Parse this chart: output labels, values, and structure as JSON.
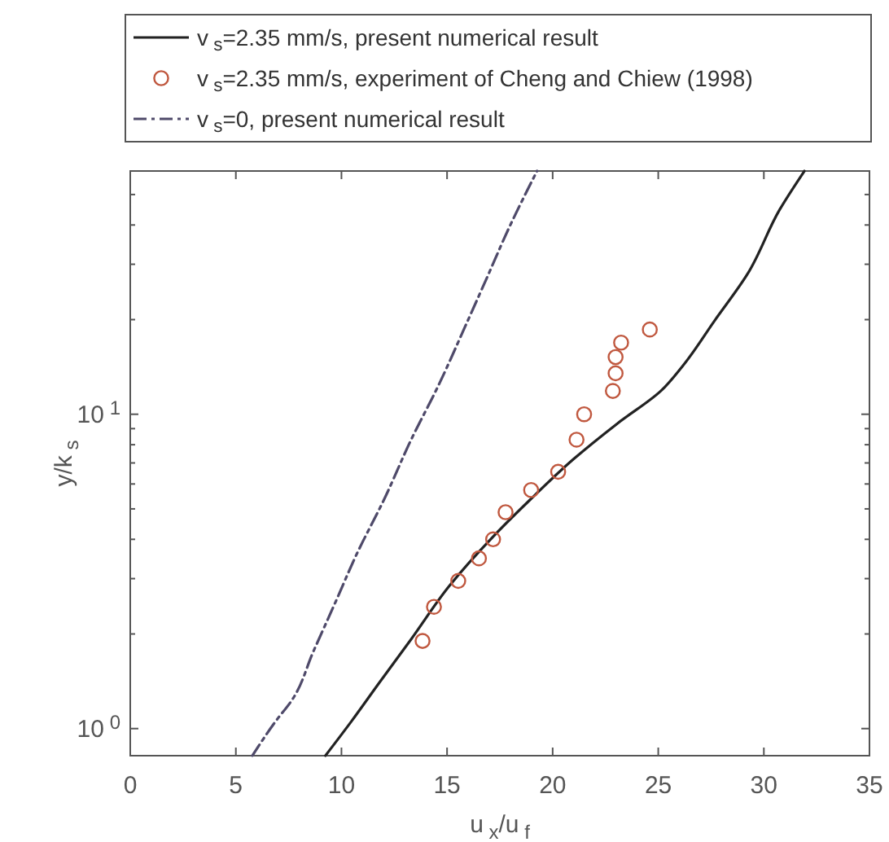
{
  "chart_data": {
    "type": "line",
    "xlabel": "u$_{x}$/u$_{f}$",
    "ylabel": "y/k$_{s}$",
    "log": "y",
    "grid": false,
    "legend": "top",
    "xlim": [
      0,
      35
    ],
    "xticks": [
      0,
      5,
      10,
      15,
      20,
      25,
      30,
      35
    ],
    "ylim": [
      0.82,
      59.4
    ],
    "yticks": [
      {
        "value": 1,
        "label": "10$^{0}$"
      },
      {
        "value": 2,
        "label": null
      },
      {
        "value": 3,
        "label": null
      },
      {
        "value": 4,
        "label": null
      },
      {
        "value": 5,
        "label": null
      },
      {
        "value": 6,
        "label": null
      },
      {
        "value": 7,
        "label": null
      },
      {
        "value": 8,
        "label": null
      },
      {
        "value": 9,
        "label": null
      },
      {
        "value": 10,
        "label": "10$^{1}$"
      },
      {
        "value": 20,
        "label": null
      },
      {
        "value": 30,
        "label": null
      },
      {
        "value": 40,
        "label": null
      },
      {
        "value": 50,
        "label": null
      }
    ],
    "series": [
      {
        "name": "v$_{s}$=2.35 mm/s, present numerical result",
        "line_style": "solid",
        "marker": "none",
        "color": "#222222",
        "x": [
          9.24,
          10.47,
          11.76,
          13.3,
          15.1,
          17.15,
          18.95,
          21.0,
          23.06,
          25.12,
          26.14,
          27.68,
          29.22,
          30.76,
          31.92
        ],
        "values": [
          0.82,
          1.054,
          1.39,
          1.925,
          2.84,
          4.06,
          5.36,
          7.21,
          9.34,
          11.86,
          14.2,
          19.9,
          27.9,
          44.9,
          59.4
        ]
      },
      {
        "name": "v$_{s}$=2.35 mm/s, experiment of Cheng and Chiew (1998)",
        "type": "scatter",
        "marker": "circle",
        "color": "#c0583f",
        "x": [
          13.84,
          14.38,
          15.53,
          16.51,
          17.18,
          17.77,
          18.98,
          20.26,
          21.13,
          21.49,
          22.85,
          22.98,
          22.98,
          23.24,
          24.6
        ],
        "values": [
          1.9,
          2.44,
          2.95,
          3.48,
          4.0,
          4.88,
          5.74,
          6.56,
          8.3,
          10.0,
          11.86,
          13.5,
          15.2,
          16.9,
          18.6
        ]
      },
      {
        "name": "v$_{s}$=0, present numerical result",
        "line_style": "dashdot",
        "marker": "none",
        "color": "#4f4a6a",
        "x": [
          5.78,
          6.88,
          7.65,
          8.68,
          9.71,
          10.73,
          12.02,
          13.3,
          14.58,
          15.87,
          16.9,
          17.92,
          19.26
        ],
        "values": [
          0.82,
          1.054,
          1.23,
          1.765,
          2.52,
          3.6,
          5.36,
          8.3,
          12.3,
          19.1,
          27.3,
          39.0,
          59.4
        ]
      }
    ]
  }
}
